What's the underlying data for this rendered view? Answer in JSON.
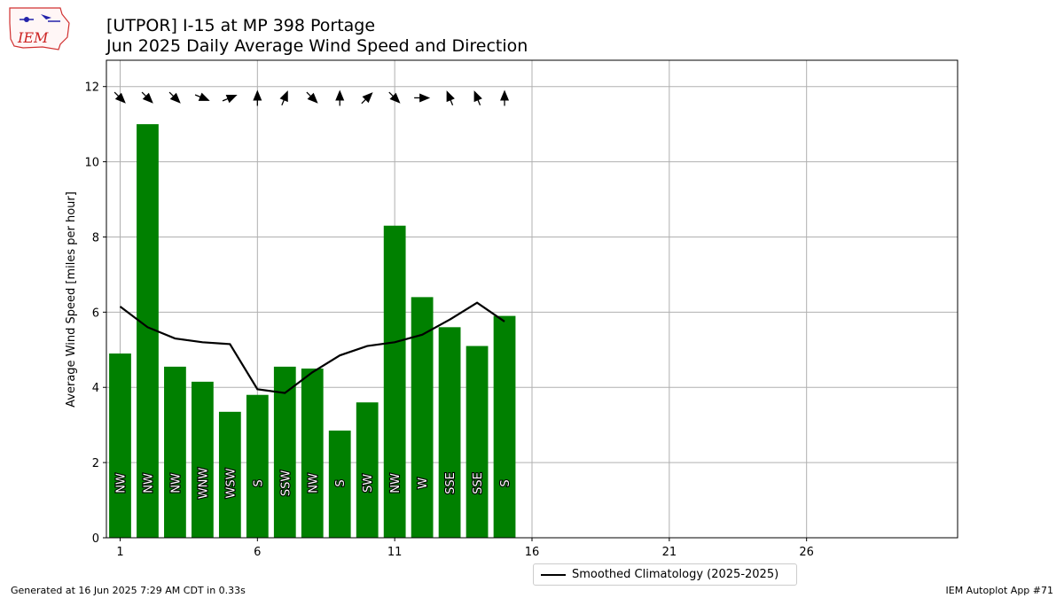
{
  "header": {
    "title_line1": "[UTPOR] I-15 at MP 398 Portage",
    "title_line2": "Jun 2025 Daily Average Wind Speed and Direction"
  },
  "logo": {
    "text": "IEM"
  },
  "footer": {
    "generated": "Generated at 16 Jun 2025 7:29 AM CDT in 0.33s",
    "app": "IEM Autoplot App #71"
  },
  "legend": {
    "climatology_label": "Smoothed Climatology (2025-2025)"
  },
  "colors": {
    "bar": "#008000",
    "line": "#000000",
    "grid": "#b0b0b0"
  },
  "chart_data": {
    "type": "bar",
    "ylabel": "Average Wind Speed [miles per hour]",
    "xlim": [
      0.5,
      31.5
    ],
    "ylim": [
      0,
      12.7
    ],
    "xticks": [
      1,
      6,
      11,
      16,
      21,
      26
    ],
    "yticks": [
      0,
      2,
      4,
      6,
      8,
      10,
      12
    ],
    "grid": true,
    "legend_position": "bottom-center",
    "days": [
      1,
      2,
      3,
      4,
      5,
      6,
      7,
      8,
      9,
      10,
      11,
      12,
      13,
      14,
      15
    ],
    "values": [
      4.9,
      11.0,
      4.55,
      4.15,
      3.35,
      3.8,
      4.55,
      4.5,
      2.85,
      3.6,
      8.3,
      6.4,
      5.6,
      5.1,
      5.9
    ],
    "directions": [
      "NW",
      "NW",
      "NW",
      "WNW",
      "WSW",
      "S",
      "SSW",
      "NW",
      "S",
      "SW",
      "NW",
      "W",
      "SSE",
      "SSE",
      "S"
    ],
    "direction_degrees": [
      315,
      315,
      315,
      292.5,
      247.5,
      180,
      202.5,
      315,
      180,
      225,
      315,
      270,
      157.5,
      157.5,
      180
    ],
    "climatology": {
      "name": "Smoothed Climatology (2025-2025)",
      "values": [
        6.15,
        5.6,
        5.3,
        5.2,
        5.15,
        3.95,
        3.85,
        4.4,
        4.85,
        5.1,
        5.2,
        5.4,
        5.8,
        6.25,
        5.75
      ]
    }
  }
}
